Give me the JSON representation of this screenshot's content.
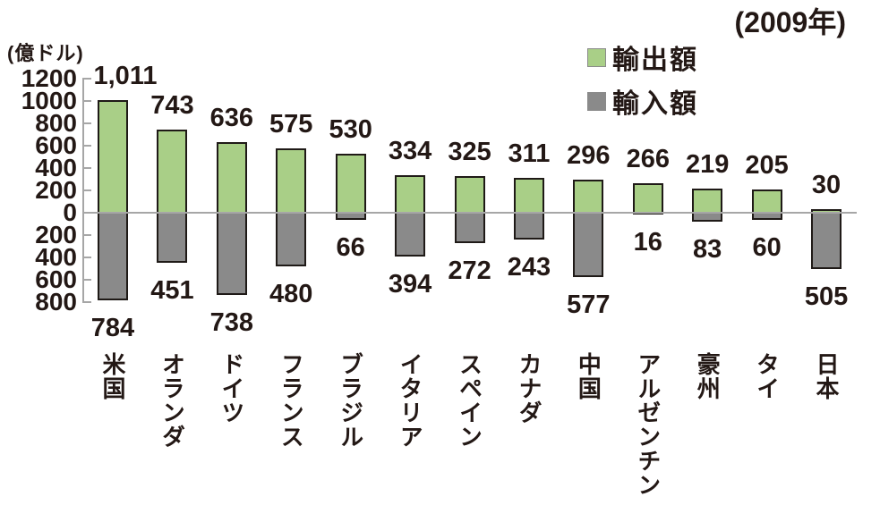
{
  "chart": {
    "year_title": "(2009年)",
    "unit_label": "(億ドル)",
    "legend": [
      {
        "label": "輸出額",
        "color": "#a9cf87"
      },
      {
        "label": "輸入額",
        "color": "#8a8a8a"
      }
    ]
  },
  "chart_data": {
    "type": "bar",
    "title": "(2009年)",
    "ylabel": "(億ドル)",
    "categories": [
      "米国",
      "オランダ",
      "ドイツ",
      "フランス",
      "ブラジル",
      "イタリア",
      "スペイン",
      "カナダ",
      "中国",
      "アルゼンチン",
      "豪州",
      "タイ",
      "日本"
    ],
    "series": [
      {
        "name": "輸出額",
        "direction": "up",
        "color": "#a9cf87",
        "values": [
          1011,
          743,
          636,
          575,
          530,
          334,
          325,
          311,
          296,
          266,
          219,
          205,
          30
        ],
        "labels": [
          "1,011",
          "743",
          "636",
          "575",
          "530",
          "334",
          "325",
          "311",
          "296",
          "266",
          "219",
          "205",
          "30"
        ]
      },
      {
        "name": "輸入額",
        "direction": "down",
        "color": "#8a8a8a",
        "values": [
          784,
          451,
          738,
          480,
          66,
          394,
          272,
          243,
          577,
          16,
          83,
          60,
          505
        ],
        "labels": [
          "784",
          "451",
          "738",
          "480",
          "66",
          "394",
          "272",
          "243",
          "577",
          "16",
          "83",
          "60",
          "505"
        ]
      }
    ],
    "y_axis": {
      "unit": "億ドル",
      "range_up": 1200,
      "range_down": 800,
      "tick_interval": 200,
      "ticks": [
        {
          "label": "1200",
          "value": 1200
        },
        {
          "label": "1000",
          "value": 1000
        },
        {
          "label": "800",
          "value": 800
        },
        {
          "label": "600",
          "value": 600
        },
        {
          "label": "400",
          "value": 400
        },
        {
          "label": "200",
          "value": 200
        },
        {
          "label": "0",
          "value": 0
        },
        {
          "label": "200",
          "value": -200
        },
        {
          "label": "400",
          "value": -400
        },
        {
          "label": "600",
          "value": -600
        },
        {
          "label": "800",
          "value": -800
        }
      ]
    },
    "legend_position": "top-center",
    "grid": "zero-line-only"
  }
}
